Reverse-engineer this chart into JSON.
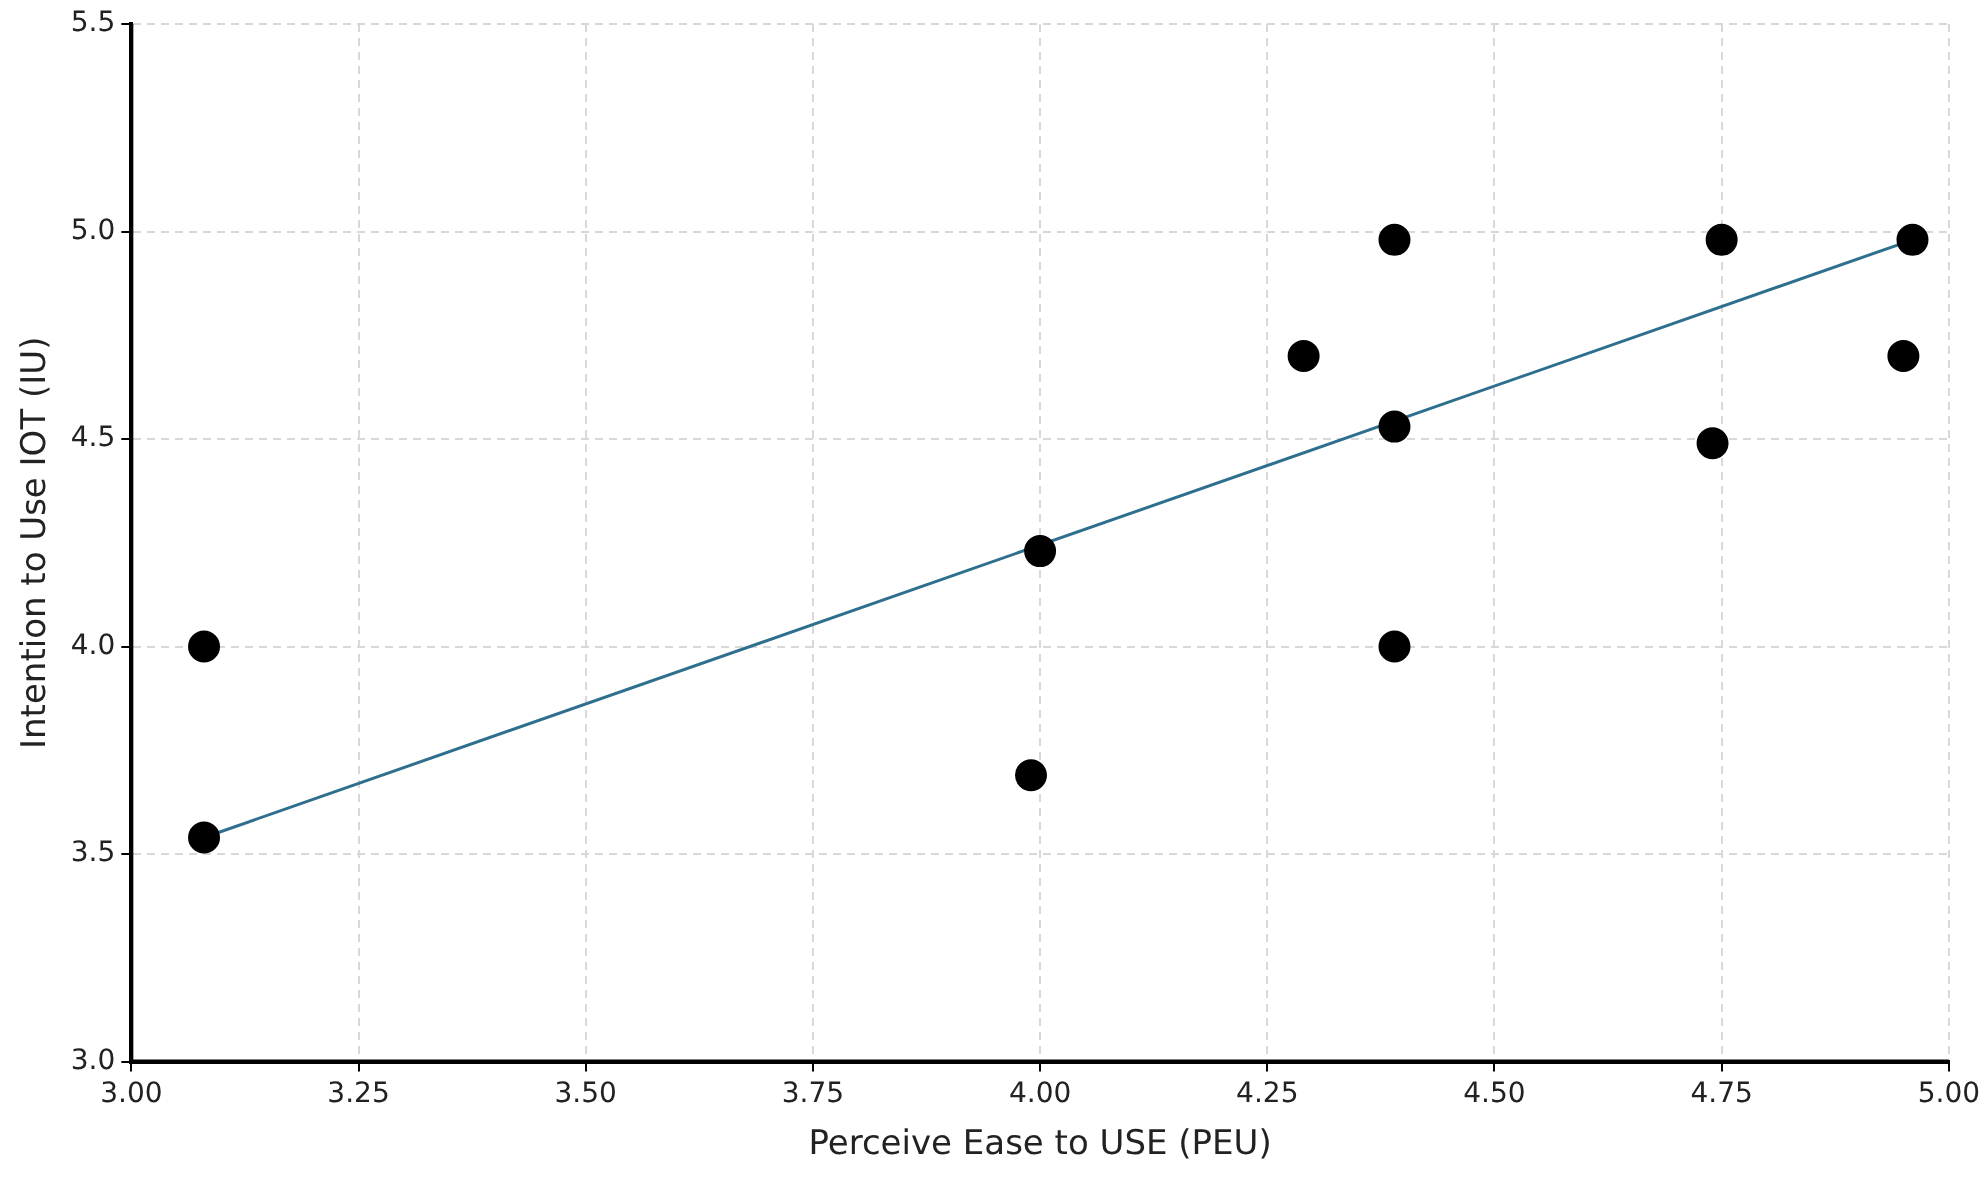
{
  "chart_data": {
    "type": "scatter",
    "xlabel": "Perceive Ease to USE (PEU)",
    "ylabel": "Intention to Use IOT (IU)",
    "xlim": [
      3,
      5
    ],
    "ylim": [
      3,
      5.5
    ],
    "xticks": [
      {
        "value": 3,
        "label": "3.00"
      },
      {
        "value": 3.25,
        "label": "3.25"
      },
      {
        "value": 3.5,
        "label": "3.50"
      },
      {
        "value": 3.75,
        "label": "3.75"
      },
      {
        "value": 4,
        "label": "4.00"
      },
      {
        "value": 4.25,
        "label": "4.25"
      },
      {
        "value": 4.5,
        "label": "4.50"
      },
      {
        "value": 4.75,
        "label": "4.75"
      },
      {
        "value": 5,
        "label": "5.00"
      }
    ],
    "yticks": [
      {
        "value": 3,
        "label": "3.0"
      },
      {
        "value": 3.5,
        "label": "3.5"
      },
      {
        "value": 4,
        "label": "4.0"
      },
      {
        "value": 4.5,
        "label": "4.5"
      },
      {
        "value": 5,
        "label": "5.0"
      },
      {
        "value": 5.5,
        "label": "5.5"
      }
    ],
    "grid": true,
    "legend": false,
    "series": [
      {
        "color": "#000000",
        "marker": "circle",
        "x": [
          3.08,
          3.08,
          3.99,
          4.0,
          4.29,
          4.39,
          4.39,
          4.39,
          4.74,
          4.75,
          4.95,
          4.96
        ],
        "values": [
          4.0,
          3.54,
          3.69,
          4.23,
          4.7,
          4.98,
          4.53,
          4.0,
          4.49,
          4.98,
          4.7,
          4.98
        ]
      },
      {
        "type": "line",
        "color": "#2e6f8e",
        "marker": "none",
        "line_style": "solid",
        "x": [
          3.08,
          4.96
        ],
        "values": [
          3.54,
          4.98
        ]
      }
    ]
  }
}
